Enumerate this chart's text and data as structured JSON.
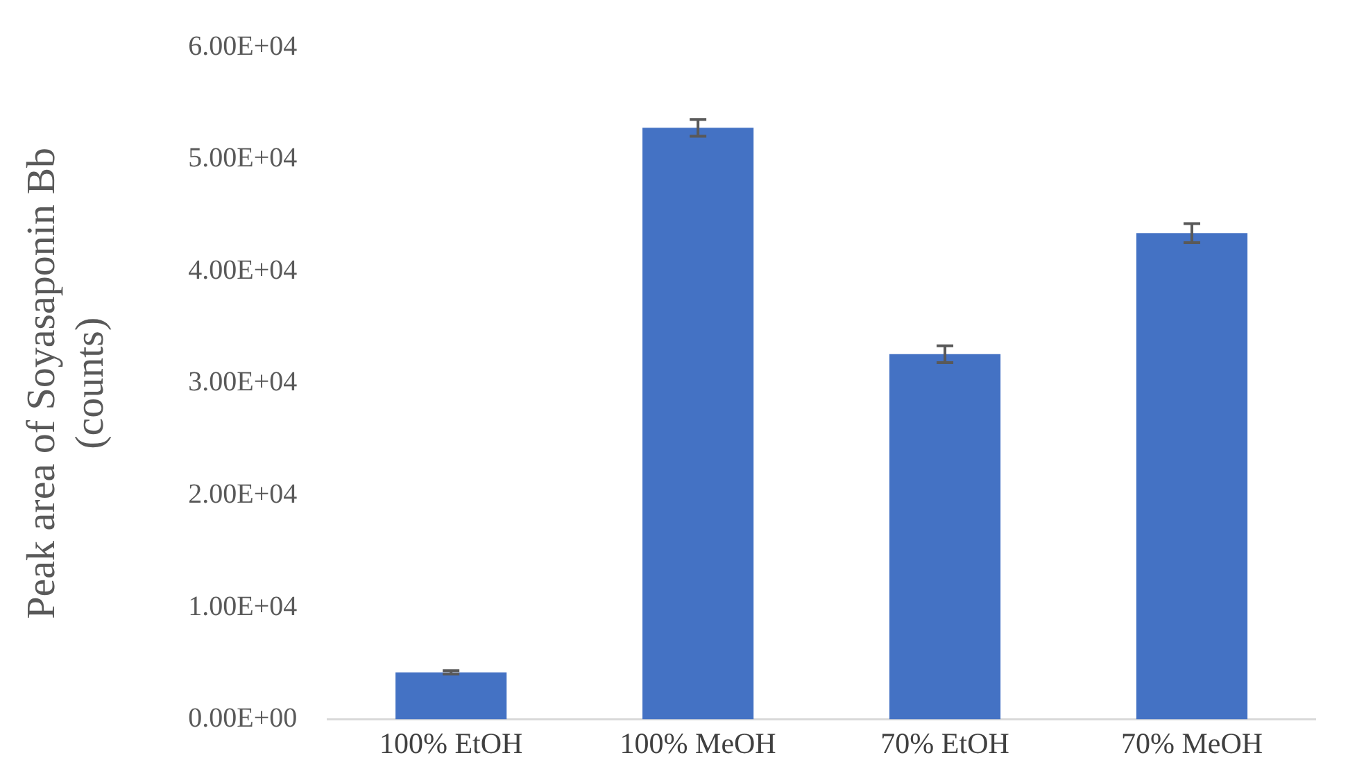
{
  "chart_data": {
    "type": "bar",
    "ylabel": "Peak area of Soyasaponin Bb\n(counts)",
    "categories": [
      "100% EtOH",
      "100% MeOH",
      "70% EtOH",
      "70% MeOH"
    ],
    "values": [
      4200,
      52800,
      32600,
      43400
    ],
    "errors": [
      150,
      750,
      750,
      850
    ],
    "color": "#4472c4",
    "ylim": [
      0,
      60000
    ],
    "yticks": [
      {
        "value": 0,
        "label": "0.00E+00"
      },
      {
        "value": 10000,
        "label": "1.00E+04"
      },
      {
        "value": 20000,
        "label": "2.00E+04"
      },
      {
        "value": 30000,
        "label": "3.00E+04"
      },
      {
        "value": 40000,
        "label": "4.00E+04"
      },
      {
        "value": 50000,
        "label": "5.00E+04"
      },
      {
        "value": 60000,
        "label": "6.00E+04"
      }
    ],
    "grid": false,
    "legend": false
  }
}
